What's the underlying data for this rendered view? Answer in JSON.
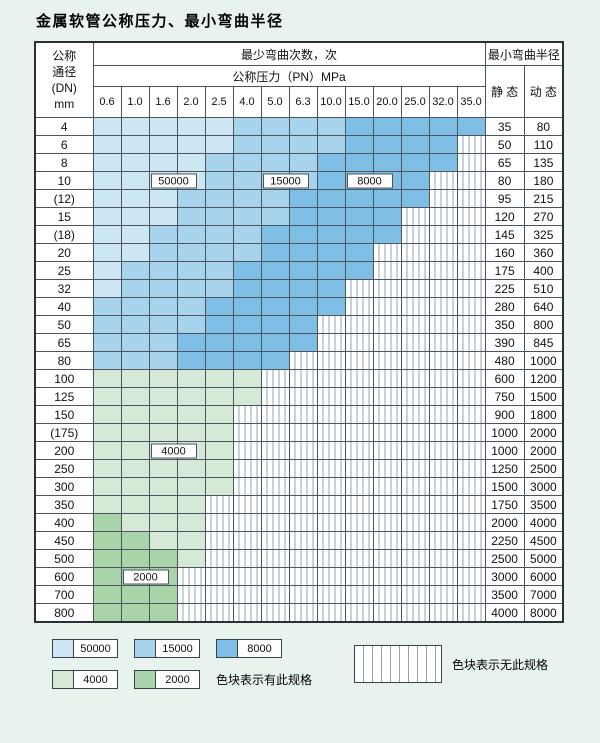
{
  "title": "金属软管公称压力、最小弯曲半径",
  "colors": {
    "page_bg": "#e9f3ee",
    "blue_50000": "#cde6f4",
    "blue_15000": "#a8d3ec",
    "blue_8000": "#7fbfe6",
    "green_4000": "#d6e9d6",
    "green_2000": "#a9d3a9",
    "grid_line": "#4a5560",
    "stripe_line": "#93a5b5"
  },
  "table": {
    "header": {
      "dn_lines": [
        "公称",
        "通径",
        "(DN)",
        "mm"
      ],
      "bend_times": "最少弯曲次数，次",
      "pressure": "公称压力（PN）MPa",
      "pressures": [
        "0.6",
        "1.0",
        "1.6",
        "2.0",
        "2.5",
        "4.0",
        "5.0",
        "6.3",
        "10.0",
        "15.0",
        "20.0",
        "25.0",
        "32.0",
        "35.0"
      ],
      "radius": "最小弯曲半径",
      "static": "静 态",
      "dynamic": "动 态"
    },
    "rows": [
      {
        "dn": "4",
        "static": "35",
        "dynamic": "80",
        "cells": [
          "50000",
          "50000",
          "50000",
          "50000",
          "50000",
          "15000",
          "15000",
          "15000",
          "15000",
          "8000",
          "8000",
          "8000",
          "8000",
          "8000"
        ]
      },
      {
        "dn": "6",
        "static": "50",
        "dynamic": "110",
        "cells": [
          "50000",
          "50000",
          "50000",
          "50000",
          "50000",
          "15000",
          "15000",
          "15000",
          "15000",
          "8000",
          "8000",
          "8000",
          "8000",
          "none"
        ]
      },
      {
        "dn": "8",
        "static": "65",
        "dynamic": "135",
        "cells": [
          "50000",
          "50000",
          "50000",
          "50000",
          "15000",
          "15000",
          "15000",
          "15000",
          "8000",
          "8000",
          "8000",
          "8000",
          "8000",
          "none"
        ]
      },
      {
        "dn": "10",
        "static": "80",
        "dynamic": "180",
        "cells": [
          "50000",
          "50000",
          "50000",
          "50000",
          "15000",
          "15000",
          "15000",
          "15000",
          "8000",
          "8000",
          "8000",
          "8000",
          "none",
          "none"
        ]
      },
      {
        "dn": "(12)",
        "static": "95",
        "dynamic": "215",
        "cells": [
          "50000",
          "50000",
          "50000",
          "15000",
          "15000",
          "15000",
          "15000",
          "8000",
          "8000",
          "8000",
          "8000",
          "8000",
          "none",
          "none"
        ]
      },
      {
        "dn": "15",
        "static": "120",
        "dynamic": "270",
        "cells": [
          "50000",
          "50000",
          "50000",
          "15000",
          "15000",
          "15000",
          "15000",
          "8000",
          "8000",
          "8000",
          "8000",
          "none",
          "none",
          "none"
        ]
      },
      {
        "dn": "(18)",
        "static": "145",
        "dynamic": "325",
        "cells": [
          "50000",
          "50000",
          "15000",
          "15000",
          "15000",
          "15000",
          "8000",
          "8000",
          "8000",
          "8000",
          "8000",
          "none",
          "none",
          "none"
        ]
      },
      {
        "dn": "20",
        "static": "160",
        "dynamic": "360",
        "cells": [
          "50000",
          "50000",
          "15000",
          "15000",
          "15000",
          "15000",
          "8000",
          "8000",
          "8000",
          "8000",
          "none",
          "none",
          "none",
          "none"
        ]
      },
      {
        "dn": "25",
        "static": "175",
        "dynamic": "400",
        "cells": [
          "50000",
          "15000",
          "15000",
          "15000",
          "15000",
          "8000",
          "8000",
          "8000",
          "8000",
          "8000",
          "none",
          "none",
          "none",
          "none"
        ]
      },
      {
        "dn": "32",
        "static": "225",
        "dynamic": "510",
        "cells": [
          "50000",
          "15000",
          "15000",
          "15000",
          "15000",
          "8000",
          "8000",
          "8000",
          "8000",
          "none",
          "none",
          "none",
          "none",
          "none"
        ]
      },
      {
        "dn": "40",
        "static": "280",
        "dynamic": "640",
        "cells": [
          "15000",
          "15000",
          "15000",
          "15000",
          "8000",
          "8000",
          "8000",
          "8000",
          "8000",
          "none",
          "none",
          "none",
          "none",
          "none"
        ]
      },
      {
        "dn": "50",
        "static": "350",
        "dynamic": "800",
        "cells": [
          "15000",
          "15000",
          "15000",
          "15000",
          "8000",
          "8000",
          "8000",
          "8000",
          "none",
          "none",
          "none",
          "none",
          "none",
          "none"
        ]
      },
      {
        "dn": "65",
        "static": "390",
        "dynamic": "845",
        "cells": [
          "15000",
          "15000",
          "15000",
          "8000",
          "8000",
          "8000",
          "8000",
          "8000",
          "none",
          "none",
          "none",
          "none",
          "none",
          "none"
        ]
      },
      {
        "dn": "80",
        "static": "480",
        "dynamic": "1000",
        "cells": [
          "15000",
          "15000",
          "15000",
          "8000",
          "8000",
          "8000",
          "8000",
          "none",
          "none",
          "none",
          "none",
          "none",
          "none",
          "none"
        ]
      },
      {
        "dn": "100",
        "static": "600",
        "dynamic": "1200",
        "cells": [
          "4000",
          "4000",
          "4000",
          "4000",
          "4000",
          "4000",
          "none",
          "none",
          "none",
          "none",
          "none",
          "none",
          "none",
          "none"
        ]
      },
      {
        "dn": "125",
        "static": "750",
        "dynamic": "1500",
        "cells": [
          "4000",
          "4000",
          "4000",
          "4000",
          "4000",
          "4000",
          "none",
          "none",
          "none",
          "none",
          "none",
          "none",
          "none",
          "none"
        ]
      },
      {
        "dn": "150",
        "static": "900",
        "dynamic": "1800",
        "cells": [
          "4000",
          "4000",
          "4000",
          "4000",
          "4000",
          "none",
          "none",
          "none",
          "none",
          "none",
          "none",
          "none",
          "none",
          "none"
        ]
      },
      {
        "dn": "(175)",
        "static": "1000",
        "dynamic": "2000",
        "cells": [
          "4000",
          "4000",
          "4000",
          "4000",
          "4000",
          "none",
          "none",
          "none",
          "none",
          "none",
          "none",
          "none",
          "none",
          "none"
        ]
      },
      {
        "dn": "200",
        "static": "1000",
        "dynamic": "2000",
        "cells": [
          "4000",
          "4000",
          "4000",
          "4000",
          "4000",
          "none",
          "none",
          "none",
          "none",
          "none",
          "none",
          "none",
          "none",
          "none"
        ]
      },
      {
        "dn": "250",
        "static": "1250",
        "dynamic": "2500",
        "cells": [
          "4000",
          "4000",
          "4000",
          "4000",
          "4000",
          "none",
          "none",
          "none",
          "none",
          "none",
          "none",
          "none",
          "none",
          "none"
        ]
      },
      {
        "dn": "300",
        "static": "1500",
        "dynamic": "3000",
        "cells": [
          "4000",
          "4000",
          "4000",
          "4000",
          "4000",
          "none",
          "none",
          "none",
          "none",
          "none",
          "none",
          "none",
          "none",
          "none"
        ]
      },
      {
        "dn": "350",
        "static": "1750",
        "dynamic": "3500",
        "cells": [
          "4000",
          "4000",
          "4000",
          "4000",
          "none",
          "none",
          "none",
          "none",
          "none",
          "none",
          "none",
          "none",
          "none",
          "none"
        ]
      },
      {
        "dn": "400",
        "static": "2000",
        "dynamic": "4000",
        "cells": [
          "2000",
          "4000",
          "4000",
          "4000",
          "none",
          "none",
          "none",
          "none",
          "none",
          "none",
          "none",
          "none",
          "none",
          "none"
        ]
      },
      {
        "dn": "450",
        "static": "2250",
        "dynamic": "4500",
        "cells": [
          "2000",
          "2000",
          "4000",
          "4000",
          "none",
          "none",
          "none",
          "none",
          "none",
          "none",
          "none",
          "none",
          "none",
          "none"
        ]
      },
      {
        "dn": "500",
        "static": "2500",
        "dynamic": "5000",
        "cells": [
          "2000",
          "2000",
          "2000",
          "4000",
          "none",
          "none",
          "none",
          "none",
          "none",
          "none",
          "none",
          "none",
          "none",
          "none"
        ]
      },
      {
        "dn": "600",
        "static": "3000",
        "dynamic": "6000",
        "cells": [
          "2000",
          "2000",
          "2000",
          "none",
          "none",
          "none",
          "none",
          "none",
          "none",
          "none",
          "none",
          "none",
          "none",
          "none"
        ]
      },
      {
        "dn": "700",
        "static": "3500",
        "dynamic": "7000",
        "cells": [
          "2000",
          "2000",
          "2000",
          "none",
          "none",
          "none",
          "none",
          "none",
          "none",
          "none",
          "none",
          "none",
          "none",
          "none"
        ]
      },
      {
        "dn": "800",
        "static": "4000",
        "dynamic": "8000",
        "cells": [
          "2000",
          "2000",
          "2000",
          "none",
          "none",
          "none",
          "none",
          "none",
          "none",
          "none",
          "none",
          "none",
          "none",
          "none"
        ]
      }
    ],
    "overlays": [
      {
        "text": "50000",
        "dn": "10",
        "col": 2
      },
      {
        "text": "15000",
        "dn": "10",
        "col": 6
      },
      {
        "text": "8000",
        "dn": "10",
        "col": 9
      },
      {
        "text": "4000",
        "dn": "200",
        "col": 2
      },
      {
        "text": "2000",
        "dn": "600",
        "col": 1
      }
    ]
  },
  "legend": {
    "items": [
      "50000",
      "15000",
      "8000",
      "4000",
      "2000"
    ],
    "has_spec_note": "色块表示有此规格",
    "no_spec_note": "色块表示无此规格"
  }
}
